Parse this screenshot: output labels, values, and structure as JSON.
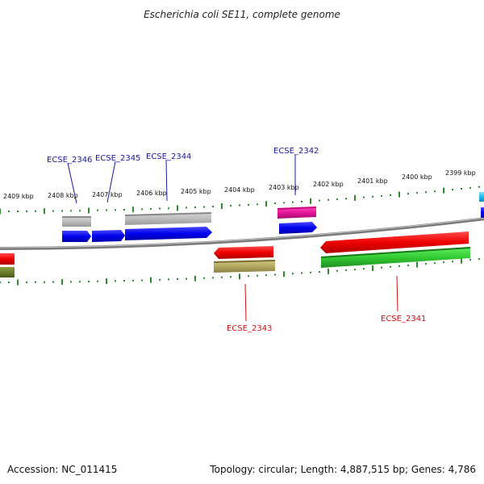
{
  "title": "Escherichia coli SE11, complete genome",
  "footer": {
    "accession": "Accession: NC_011415",
    "topology": "Topology: circular; Length: 4,887,515 bp; Genes: 4,786"
  },
  "colors": {
    "backbone": "#888888",
    "tick": "#2e8b2e",
    "label_top": "#1a1aa0",
    "label_bottom": "#cc1111"
  },
  "scale_labels": [
    "2409 kbp",
    "2408 kbp",
    "2407 kbp",
    "2406 kbp",
    "2405 kbp",
    "2404 kbp",
    "2403 kbp",
    "2402 kbp",
    "2401 kbp",
    "2400 kbp",
    "2399 kbp"
  ],
  "gene_labels_top": [
    "ECSE_2346",
    "ECSE_2345",
    "ECSE_2344",
    "ECSE_2342"
  ],
  "gene_labels_bottom": [
    "ECSE_2343",
    "ECSE_2341"
  ]
}
